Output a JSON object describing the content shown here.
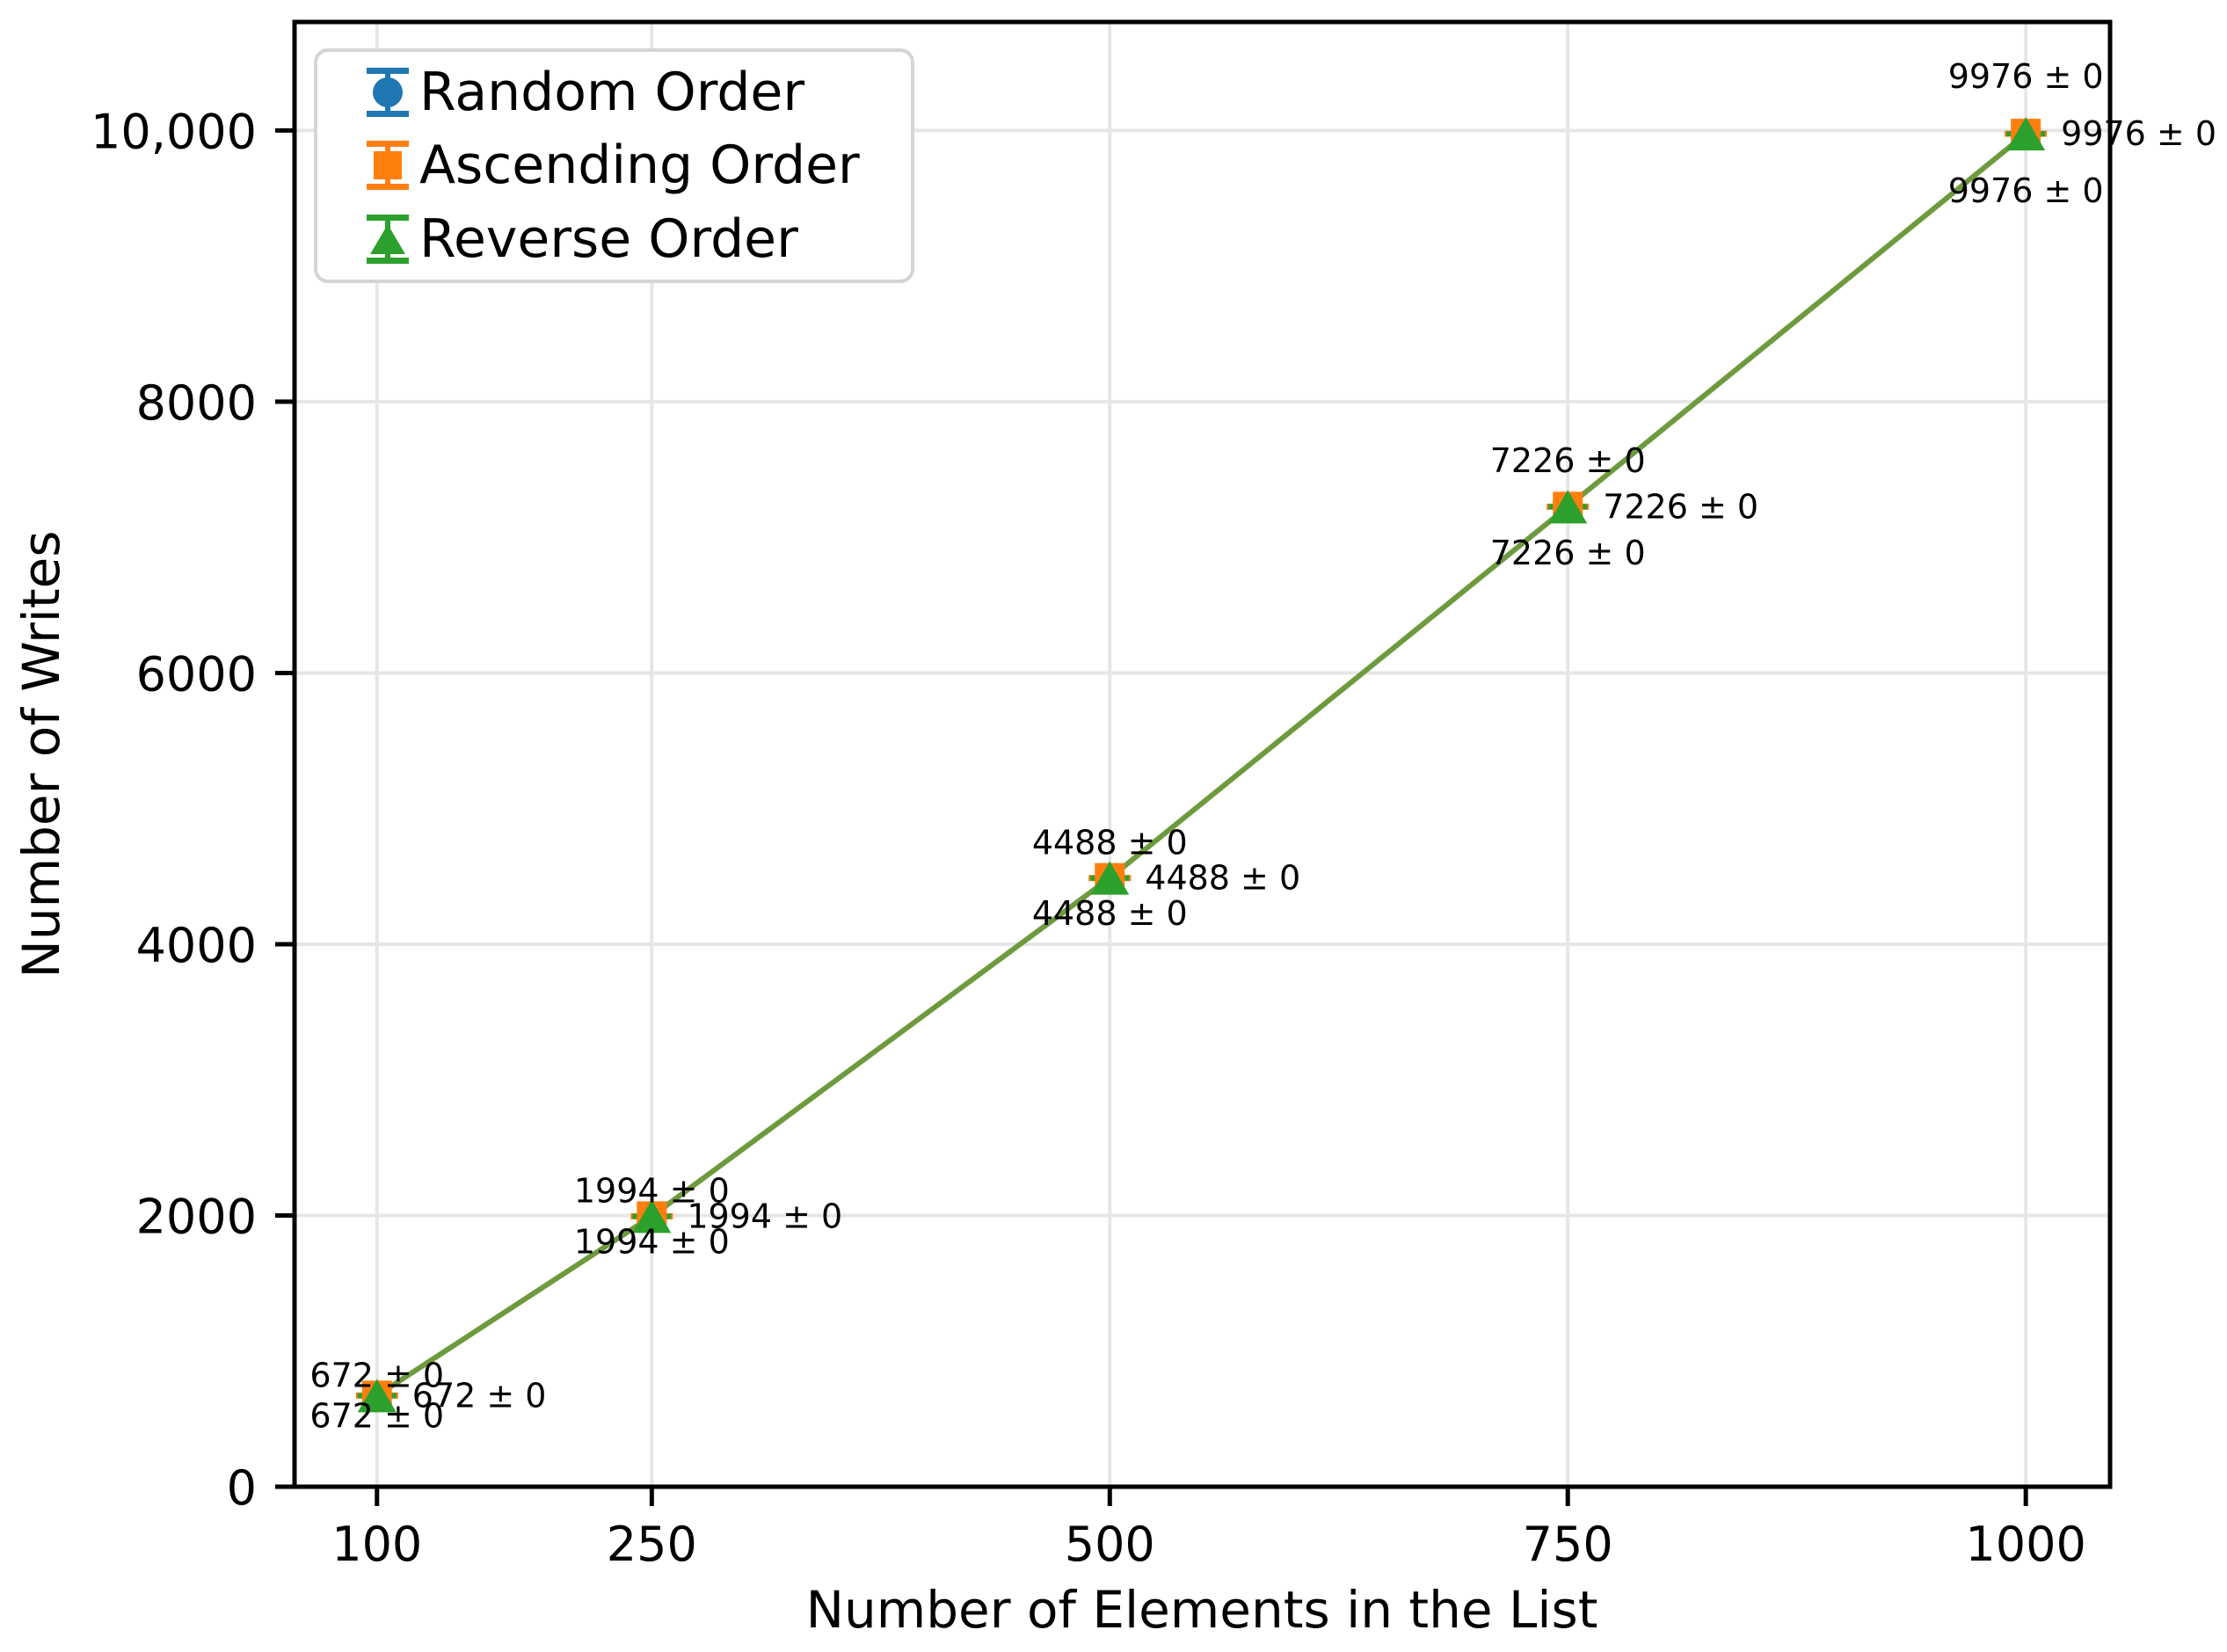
{
  "chart_data": {
    "type": "line",
    "title": "",
    "xlabel": "Number of Elements in the List",
    "ylabel": "Number of Writes",
    "x": [
      100,
      250,
      500,
      750,
      1000
    ],
    "xtick_labels": [
      "100",
      "250",
      "500",
      "750",
      "1000"
    ],
    "ytick_values": [
      0,
      2000,
      4000,
      6000,
      8000,
      10000
    ],
    "ytick_labels": [
      "0",
      "2000",
      "4000",
      "6000",
      "8000",
      "10,000"
    ],
    "xlim": [
      55,
      1046
    ],
    "ylim": [
      0,
      10800
    ],
    "grid": true,
    "legend_position": "upper left",
    "grid_color": "#e6e6e6",
    "spine_color": "#000000",
    "legend_border_color": "#d5d5d5",
    "visible_line_color": "#6e9a3e",
    "series": [
      {
        "name": "Random Order",
        "color": "#1f77b4",
        "marker": "circle",
        "values": [
          672,
          1994,
          4488,
          7226,
          9976
        ],
        "errors": [
          0,
          0,
          0,
          0,
          0
        ],
        "point_labels": [
          "672 ± 0",
          "1994 ± 0",
          "4488 ± 0",
          "7226 ± 0",
          "9976 ± 0"
        ],
        "label_placement": "above"
      },
      {
        "name": "Ascending Order",
        "color": "#ff7f0e",
        "marker": "square",
        "values": [
          672,
          1994,
          4488,
          7226,
          9976
        ],
        "errors": [
          0,
          0,
          0,
          0,
          0
        ],
        "point_labels": [
          "672 ± 0",
          "1994 ± 0",
          "4488 ± 0",
          "7226 ± 0",
          "9976 ± 0"
        ],
        "label_placement": "right"
      },
      {
        "name": "Reverse Order",
        "color": "#2ca02c",
        "marker": "triangle",
        "values": [
          672,
          1994,
          4488,
          7226,
          9976
        ],
        "errors": [
          0,
          0,
          0,
          0,
          0
        ],
        "point_labels": [
          "672 ± 0",
          "1994 ± 0",
          "4488 ± 0",
          "7226 ± 0",
          "9976 ± 0"
        ],
        "label_placement": "below"
      }
    ]
  }
}
